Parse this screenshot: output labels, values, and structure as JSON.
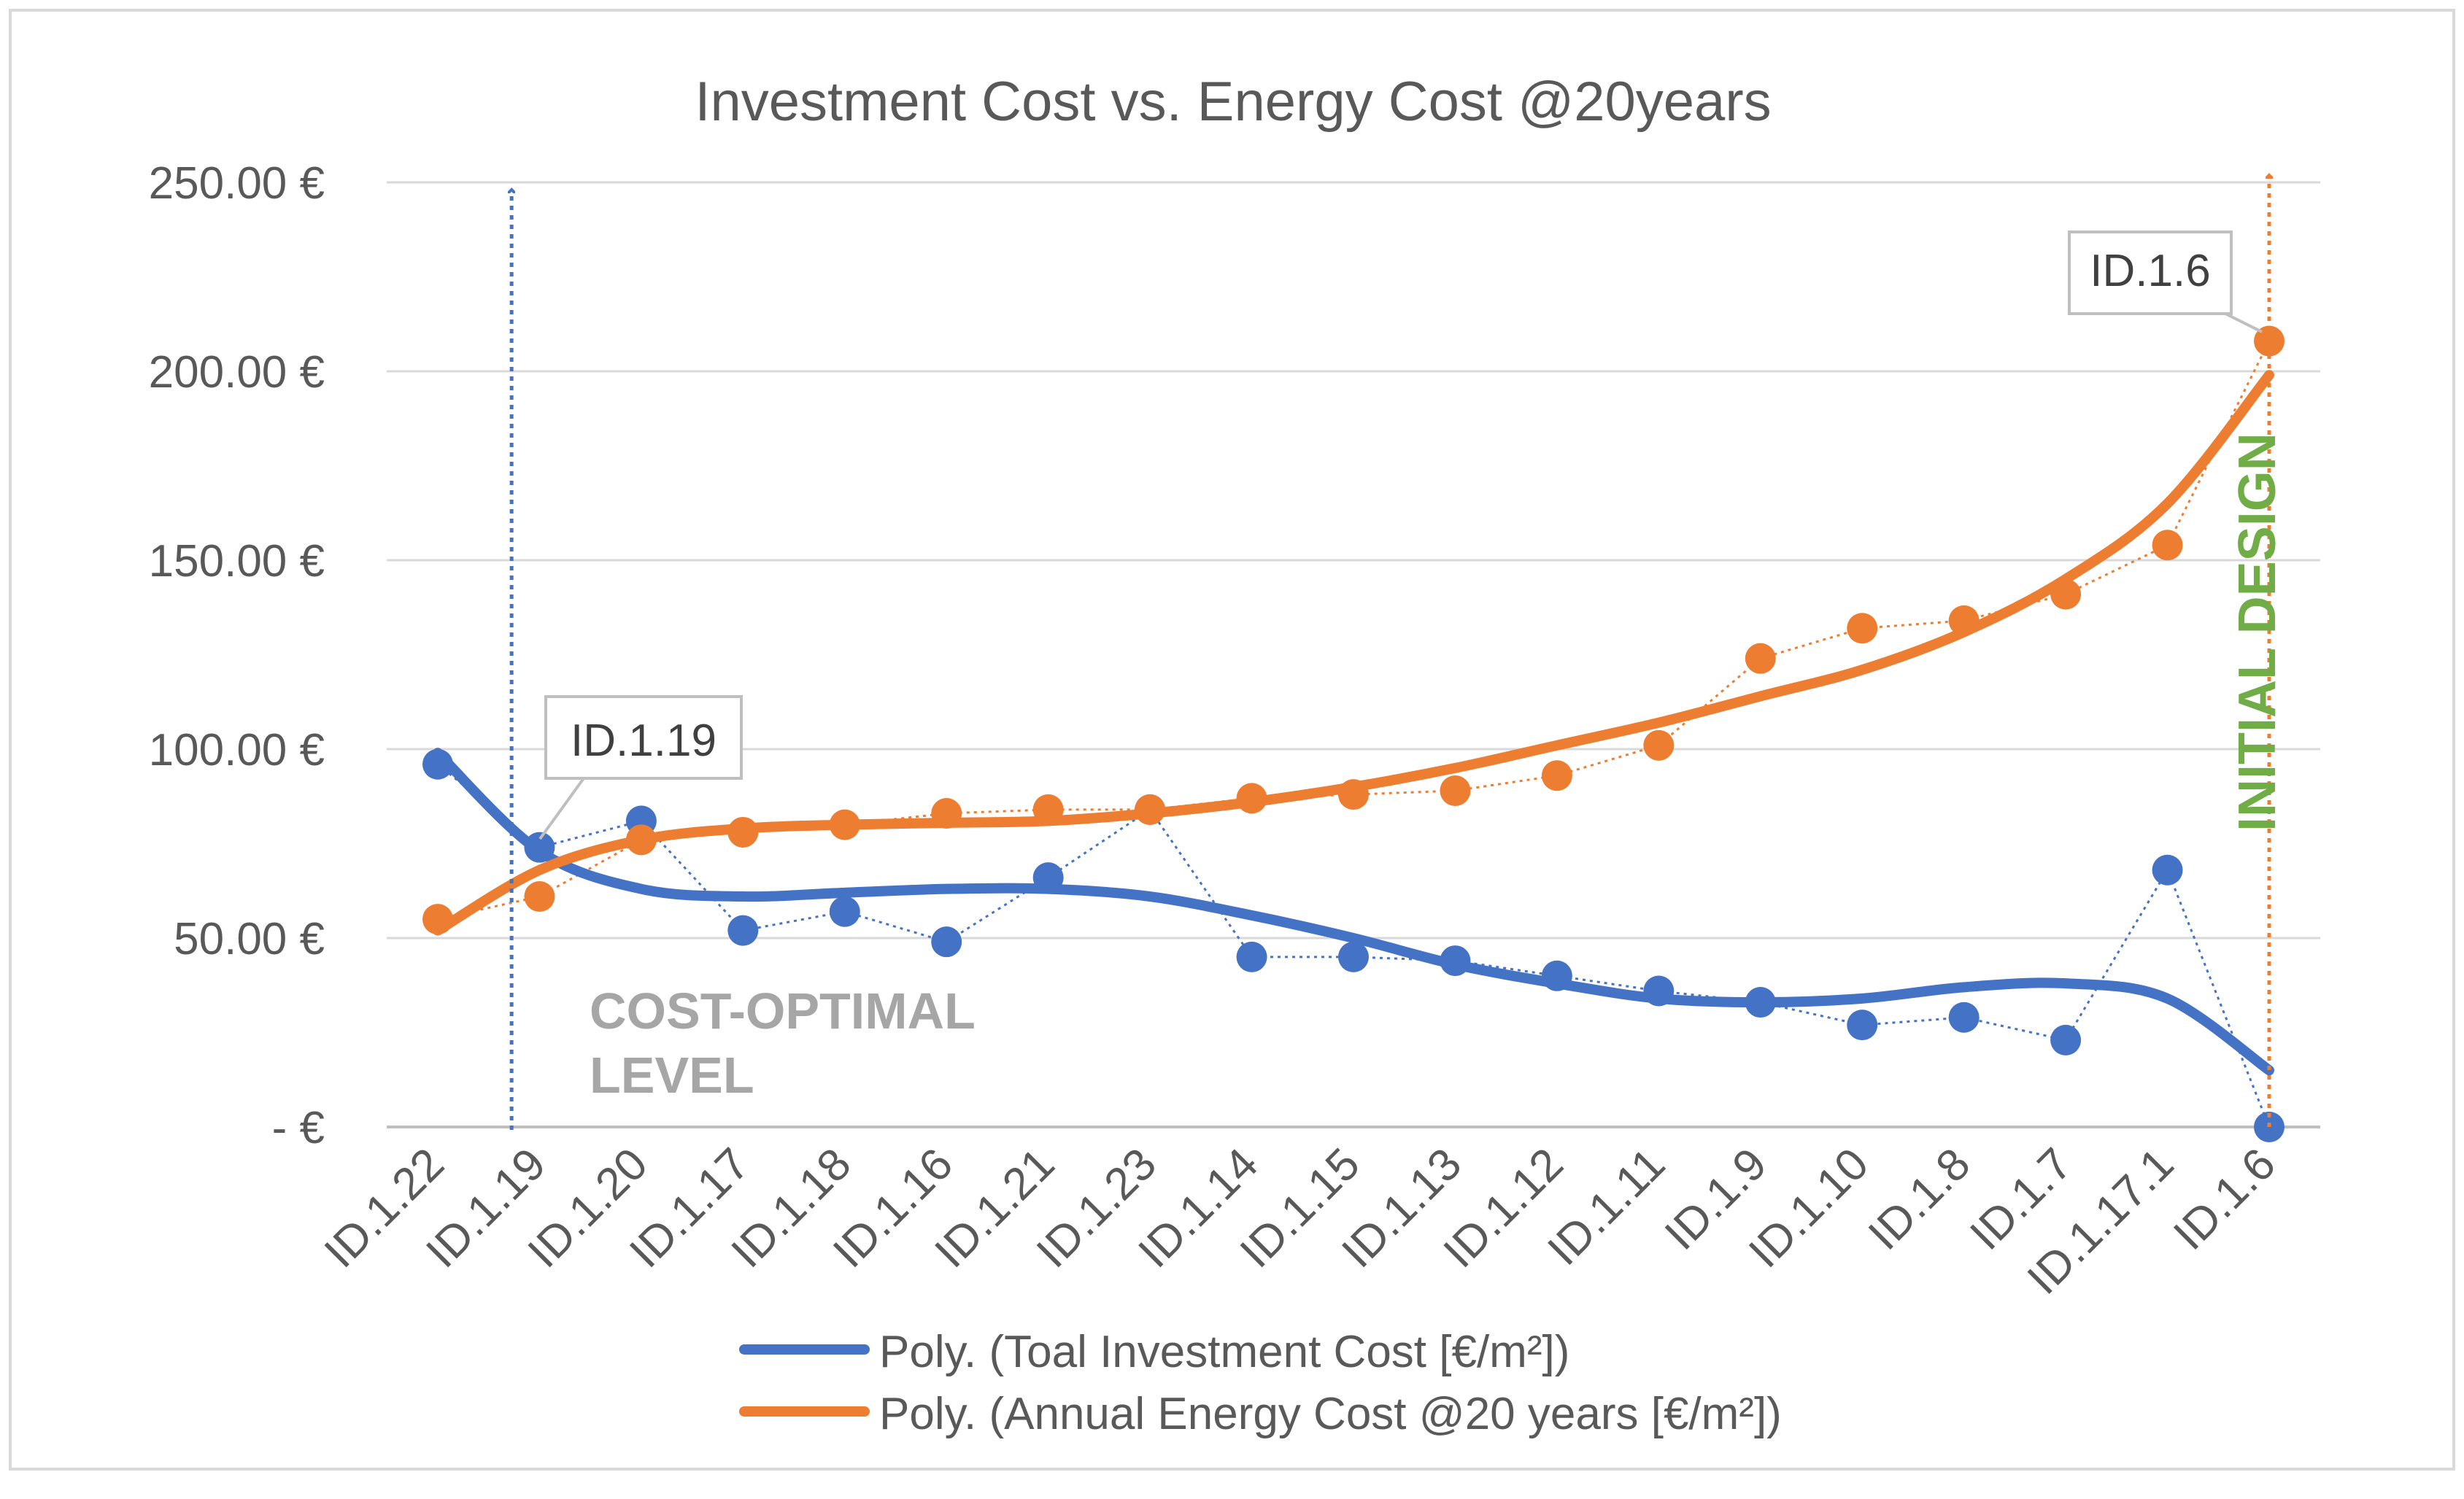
{
  "chart_data": {
    "type": "line",
    "title": "Investment Cost vs. Energy Cost @20years",
    "xlabel": "",
    "ylabel": "",
    "ylim": [
      0,
      250
    ],
    "y_ticks": [
      {
        "value": 0,
        "label": "-   €"
      },
      {
        "value": 50,
        "label": "50.00  €"
      },
      {
        "value": 100,
        "label": "100.00  €"
      },
      {
        "value": 150,
        "label": "150.00  €"
      },
      {
        "value": 200,
        "label": "200.00  €"
      },
      {
        "value": 250,
        "label": "250.00  €"
      }
    ],
    "grid": true,
    "categories": [
      "ID.1.22",
      "ID.1.19",
      "ID.1.20",
      "ID.1.17",
      "ID.1.18",
      "ID.1.16",
      "ID.1.21",
      "ID.1.23",
      "ID.1.14",
      "ID.1.15",
      "ID.1.13",
      "ID.1.12",
      "ID.1.11",
      "ID.1.9",
      "ID.1.10",
      "ID.1.8",
      "ID.1.7",
      "ID.1.17.1",
      "ID.1.6"
    ],
    "series": [
      {
        "name": "Toal Investment Cost [€/m²]",
        "color": "#4472C4",
        "values": [
          96,
          74,
          81,
          52,
          57,
          49,
          66,
          84,
          45,
          45,
          44,
          40,
          36,
          33,
          27,
          29,
          23,
          68,
          0
        ]
      },
      {
        "name": "Annual Energy Cost @20 years [€/m²]",
        "color": "#ED7D31",
        "values": [
          55,
          61,
          76,
          78,
          80,
          83,
          84,
          84,
          87,
          88,
          89,
          93,
          101,
          124,
          132,
          134,
          141,
          154,
          208
        ]
      }
    ],
    "trendlines": [
      {
        "name": "Poly. (Toal Investment Cost [€/m²])",
        "color": "#4472C4",
        "values": [
          99,
          73,
          63,
          61,
          62,
          63,
          63,
          61,
          56,
          50,
          43,
          38,
          34,
          33,
          34,
          37,
          38,
          34,
          15
        ]
      },
      {
        "name": "Poly. (Annual Energy Cost @20 years [€/m²])",
        "color": "#ED7D31",
        "values": [
          52,
          68,
          76,
          79,
          80,
          80.5,
          81,
          83,
          86,
          90,
          95,
          101,
          107,
          114,
          121,
          131,
          145,
          165,
          199
        ]
      }
    ],
    "legend_position": "bottom",
    "annotations": [
      {
        "text": "ID.1.19",
        "category": "ID.1.19",
        "value": 72,
        "color": "#404040"
      },
      {
        "text": "ID.1.6",
        "category": "ID.1.6",
        "value": 208,
        "color": "#404040"
      },
      {
        "text": "COST-OPTIMAL",
        "color": "#A6A6A6"
      },
      {
        "text": "LEVEL",
        "color": "#A6A6A6"
      },
      {
        "text": "INITIAL DESIGN",
        "color": "#70AD47"
      }
    ],
    "vertical_markers": [
      {
        "label": "cost-optimal",
        "color": "#4472C4",
        "position": "between ID.1.19 and ID.1.20"
      },
      {
        "label": "initial-design",
        "color": "#ED7D31",
        "category": "ID.1.6"
      }
    ]
  }
}
